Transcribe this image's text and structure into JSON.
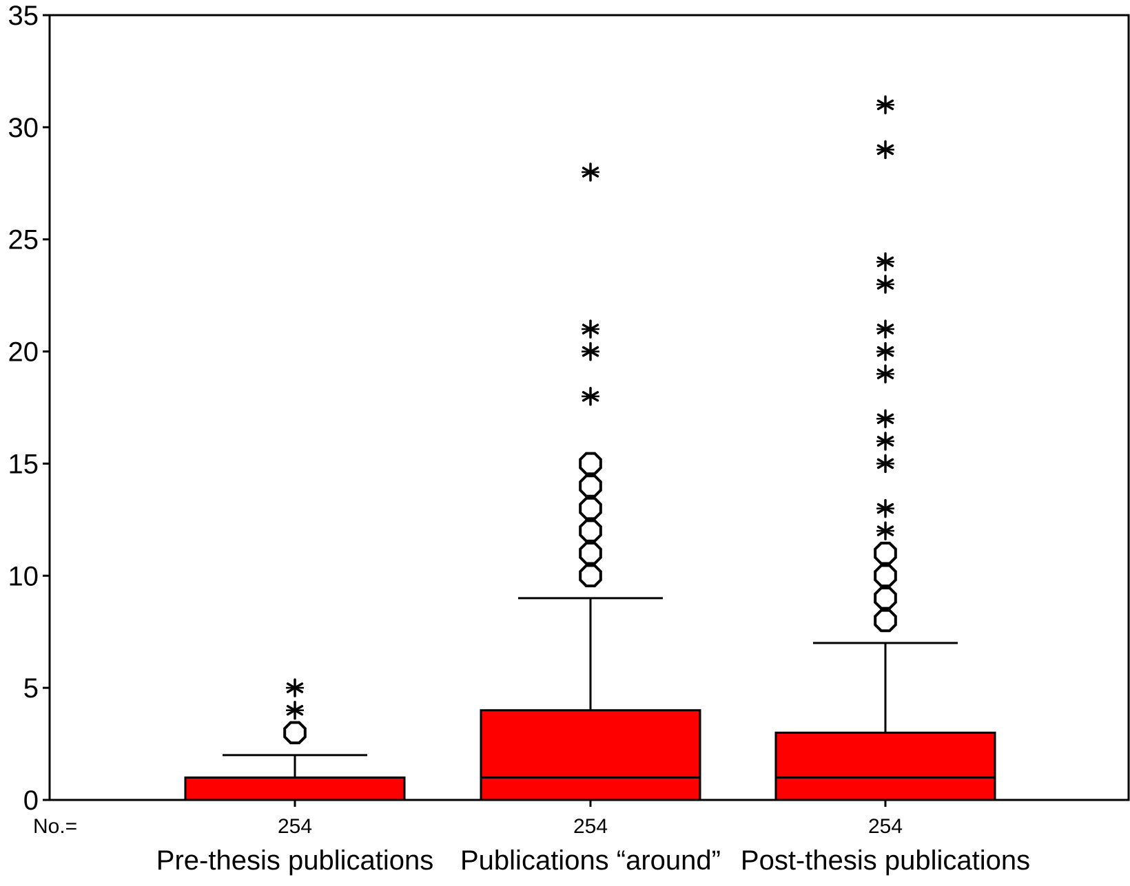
{
  "chart_data": {
    "type": "boxplot",
    "title": "",
    "xlabel": "",
    "ylabel": "",
    "ylim": [
      0,
      35
    ],
    "yticks": [
      0,
      5,
      10,
      15,
      20,
      25,
      30,
      35
    ],
    "yticklabels": [
      "0",
      "5",
      "10",
      "15",
      "20",
      "25",
      "30",
      "35"
    ],
    "n_prefix": "No.=",
    "box_color": "#ff0000",
    "grid": false,
    "categories": [
      "Pre-thesis publications",
      "Publications “around”",
      "Post-thesis publications"
    ],
    "series": [
      {
        "category": "Pre-thesis publications",
        "n": "254",
        "q1": 0,
        "median": 0,
        "q3": 1,
        "whisker_low": 0,
        "whisker_high": 2,
        "outliers": [
          3
        ],
        "extremes": [
          4,
          5
        ]
      },
      {
        "category": "Publications “around”",
        "n": "254",
        "q1": 0,
        "median": 1,
        "q3": 4,
        "whisker_low": 0,
        "whisker_high": 9,
        "outliers": [
          10,
          11,
          12,
          13,
          14,
          15
        ],
        "extremes": [
          18,
          20,
          21,
          28
        ]
      },
      {
        "category": "Post-thesis publications",
        "n": "254",
        "q1": 0,
        "median": 1,
        "q3": 3,
        "whisker_low": 0,
        "whisker_high": 7,
        "outliers": [
          8,
          9,
          10,
          11
        ],
        "extremes": [
          12,
          13,
          15,
          16,
          17,
          19,
          20,
          21,
          23,
          24,
          29,
          31
        ]
      }
    ]
  }
}
